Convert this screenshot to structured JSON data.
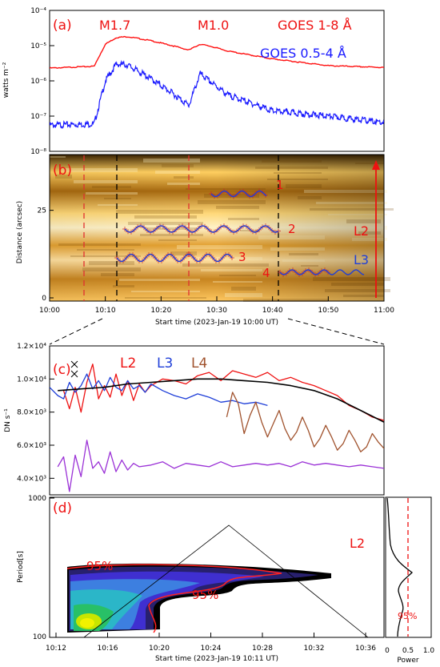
{
  "colors": {
    "goes_long": "#ff1010",
    "goes_short": "#1a1aff",
    "l2": "#ee1111",
    "l3": "#1f3fd8",
    "l4": "#a0522d",
    "violet": "#9a30d6",
    "mean": "#000000",
    "orange_dark": "#5a3200",
    "orange_bright": "#ffb21a"
  },
  "chart_data": [
    {
      "panel": "(a)",
      "type": "line",
      "ylabel": "watts m⁻²",
      "y_scale": "log",
      "ylim": [
        1e-08,
        0.0001
      ],
      "y_ticks": [
        "10⁻⁸",
        "10⁻⁷",
        "10⁻⁶",
        "10⁻⁵",
        "10⁻⁴"
      ],
      "flares": [
        "M1.7",
        "M1.0"
      ],
      "legend": [
        "GOES 1-8 Å",
        "GOES 0.5-4 Å"
      ],
      "x_minutes": [
        0,
        8,
        10,
        12,
        14,
        18,
        22,
        25,
        27,
        29,
        32,
        40,
        50,
        60
      ],
      "series": [
        {
          "name": "GOES 1-8 Å",
          "values": [
            2.3e-06,
            2.6e-06,
            1.1e-05,
            1.7e-05,
            1.8e-05,
            1.4e-05,
            1e-05,
            7.5e-06,
            1.1e-05,
            9.5e-06,
            7e-06,
            4.2e-06,
            2.7e-06,
            2.4e-06
          ]
        },
        {
          "name": "GOES 0.5-4 Å",
          "values": [
            5.5e-08,
            6e-08,
            1e-06,
            3e-06,
            2.8e-06,
            1.2e-06,
            4.5e-07,
            2e-07,
            1.6e-06,
            9e-07,
            4e-07,
            1.4e-07,
            1e-07,
            6.5e-08
          ]
        }
      ]
    },
    {
      "panel": "(b)",
      "type": "heatmap",
      "ylabel": "Distance (arcsec)",
      "xlabel": "Start time (2023-Jan-19 10:00 UT)",
      "x_ticks": [
        "10:00",
        "10:10",
        "10:20",
        "10:30",
        "10:40",
        "10:50",
        "11:00"
      ],
      "y_ticks": [
        "0",
        "25"
      ],
      "ylim": [
        0,
        40
      ],
      "track_labels": [
        "1",
        "2",
        "3",
        "4"
      ],
      "arrow_labels": [
        "L2",
        "L3"
      ]
    },
    {
      "panel": "(c)",
      "type": "line",
      "ylabel": "DN s⁻¹",
      "y_ticks": [
        "4.0×10³",
        "6.0×10³",
        "8.0×10³",
        "1.0×10⁴",
        "1.2×10⁴"
      ],
      "ylim": [
        3000,
        12000
      ],
      "xlim_minutes": [
        11.3,
        40.0
      ],
      "legend": [
        "L2",
        "L3",
        "L4"
      ],
      "series": [
        {
          "name": "L2",
          "x": [
            12.5,
            13.0,
            13.5,
            14.0,
            14.5,
            15.0,
            15.5,
            16.0,
            16.5,
            17.0,
            17.5,
            18.0,
            18.5,
            19.0,
            19.5,
            20.0,
            21.0,
            22.0,
            23.0,
            24.0,
            25.0,
            26.0,
            27.0,
            28.0,
            29.0,
            30.0,
            31.0,
            32.0,
            33.0,
            34.0,
            35.0,
            36.0,
            37.0,
            38.0,
            39.0,
            40.0
          ],
          "values": [
            9300,
            8200,
            9500,
            8000,
            9800,
            10900,
            8800,
            9600,
            8900,
            10300,
            9000,
            9900,
            8700,
            9700,
            9200,
            9600,
            10000,
            9900,
            9700,
            10200,
            10400,
            9900,
            10500,
            10300,
            10100,
            10400,
            9900,
            10100,
            9800,
            9600,
            9300,
            9000,
            8400,
            8100,
            7700,
            7500
          ]
        },
        {
          "name": "L3",
          "x": [
            11.3,
            12.0,
            12.5,
            13.0,
            13.5,
            14.0,
            14.5,
            15.0,
            15.5,
            16.0,
            16.5,
            17.0,
            17.5,
            18.0,
            18.5,
            19.0,
            19.5,
            20.0,
            21.0,
            22.0,
            23.0,
            24.0,
            25.0,
            26.0,
            27.0,
            28.0,
            29.0,
            30.0
          ],
          "values": [
            9500,
            9000,
            8800,
            9800,
            9200,
            9600,
            10300,
            9400,
            9900,
            9300,
            10100,
            9500,
            9300,
            9900,
            9400,
            9600,
            9200,
            9700,
            9300,
            9000,
            8800,
            9100,
            8900,
            8600,
            8700,
            8500,
            8600,
            8400
          ]
        },
        {
          "name": "L4",
          "x": [
            26.5,
            27.0,
            27.5,
            28.0,
            28.5,
            29.0,
            29.5,
            30.0,
            30.5,
            31.0,
            31.5,
            32.0,
            32.5,
            33.0,
            33.5,
            34.0,
            34.5,
            35.0,
            35.5,
            36.0,
            36.5,
            37.0,
            37.5,
            38.0,
            38.5,
            39.0,
            39.5,
            40.0
          ],
          "values": [
            7700,
            9200,
            8500,
            6700,
            7800,
            8600,
            7400,
            6500,
            7300,
            8100,
            7000,
            6300,
            6800,
            7700,
            6900,
            5900,
            6400,
            7200,
            6500,
            5700,
            6100,
            6900,
            6300,
            5600,
            5900,
            6700,
            6200,
            5800
          ]
        },
        {
          "name": "mean",
          "x": [
            12.0,
            14.0,
            16.0,
            18.0,
            20.0,
            22.0,
            24.0,
            26.0,
            28.0,
            30.0,
            32.0,
            34.0,
            36.0,
            38.0,
            40.0
          ],
          "values": [
            9300,
            9400,
            9500,
            9700,
            9800,
            9900,
            10000,
            10000,
            9900,
            9800,
            9600,
            9300,
            8800,
            8100,
            7400
          ]
        },
        {
          "name": "detrended",
          "x": [
            12.0,
            12.5,
            13.0,
            13.5,
            14.0,
            14.5,
            15.0,
            15.5,
            16.0,
            16.5,
            17.0,
            17.5,
            18.0,
            18.5,
            19.0,
            20.0,
            21.0,
            22.0,
            23.0,
            24.0,
            25.0,
            26.0,
            27.0,
            28.0,
            29.0,
            30.0,
            31.0,
            32.0,
            33.0,
            34.0,
            35.0,
            36.0,
            37.0,
            38.0,
            39.0,
            40.0
          ],
          "values": [
            4700,
            5300,
            3200,
            5400,
            4100,
            6300,
            4600,
            5000,
            4300,
            5600,
            4400,
            5100,
            4500,
            4900,
            4700,
            4800,
            5000,
            4600,
            4900,
            4800,
            4700,
            5000,
            4700,
            4800,
            4900,
            4800,
            4900,
            4700,
            5000,
            4800,
            4900,
            4800,
            4700,
            4800,
            4700,
            4600
          ]
        }
      ]
    },
    {
      "panel": "(d)",
      "type": "heatmap",
      "ylabel": "Period[s]",
      "xlabel": "Start time (2023-Jan-19 10:11 UT)",
      "x_ticks": [
        "10:12",
        "10:16",
        "10:20",
        "10:24",
        "10:28",
        "10:32",
        "10:36"
      ],
      "y_scale": "log",
      "ylim": [
        100,
        1000
      ],
      "y_ticks": [
        "100",
        "1000"
      ],
      "significance_labels": [
        "95%",
        "95%"
      ],
      "label": "L2"
    },
    {
      "panel": "global wavelet",
      "type": "line",
      "xlabel": "Power",
      "x_ticks": [
        "0",
        "0.5",
        "1.0"
      ],
      "significance_label": "95%"
    }
  ]
}
